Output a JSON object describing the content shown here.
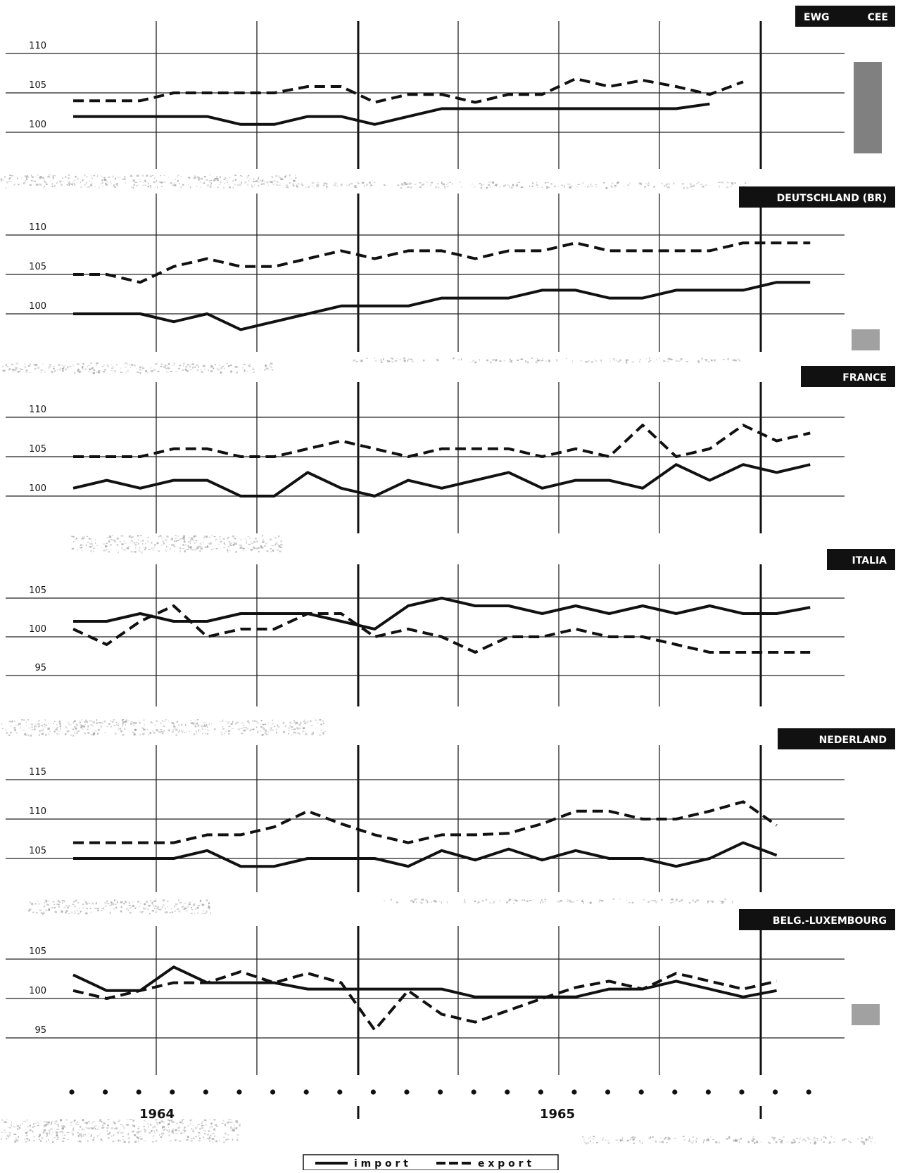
{
  "chart_data": [
    {
      "type": "line",
      "title": "EWG CEE",
      "title_parts": [
        "EWG",
        "CEE"
      ],
      "yticks": [
        100,
        105,
        110
      ],
      "ylim": [
        96.5,
        113
      ],
      "series": [
        {
          "name": "import",
          "values": [
            102,
            102,
            102,
            102,
            102,
            101,
            101,
            102,
            102,
            101,
            102,
            103,
            103,
            103,
            103,
            103,
            103,
            103,
            103,
            103.6
          ]
        },
        {
          "name": "export",
          "values": [
            104,
            104,
            104,
            105,
            105,
            105,
            105,
            105.8,
            105.8,
            103.8,
            104.8,
            104.8,
            103.8,
            104.8,
            104.8,
            106.8,
            105.8,
            106.6,
            105.8,
            104.8,
            106.4
          ]
        }
      ]
    },
    {
      "type": "line",
      "title": "DEUTSCHLAND (BR)",
      "yticks": [
        100,
        105,
        110
      ],
      "ylim": [
        95.5,
        113
      ],
      "series": [
        {
          "name": "import",
          "values": [
            100,
            100,
            100,
            99,
            100,
            98,
            99,
            100,
            101,
            101,
            101,
            102,
            102,
            102,
            103,
            103,
            102,
            102,
            103,
            103,
            103,
            104,
            104
          ]
        },
        {
          "name": "export",
          "values": [
            105,
            105,
            104,
            106,
            107,
            106,
            106,
            107,
            108,
            107,
            108,
            108,
            107,
            108,
            108,
            109,
            108,
            108,
            108,
            108,
            109,
            109,
            109
          ]
        }
      ]
    },
    {
      "type": "line",
      "title": "FRANCE",
      "yticks": [
        100,
        105,
        110
      ],
      "ylim": [
        95.5,
        114.5
      ],
      "series": [
        {
          "name": "import",
          "values": [
            101,
            102,
            101,
            102,
            102,
            100,
            100,
            103,
            101,
            100,
            102,
            101,
            102,
            103,
            101,
            102,
            102,
            101,
            104,
            102,
            104,
            103,
            104
          ]
        },
        {
          "name": "export",
          "values": [
            105,
            105,
            105,
            106,
            106,
            105,
            105,
            106,
            107,
            106,
            105,
            106,
            106,
            106,
            105,
            106,
            105,
            109,
            105,
            106,
            109,
            107,
            108
          ]
        }
      ]
    },
    {
      "type": "line",
      "title": "ITALIA",
      "yticks": [
        95,
        100,
        105
      ],
      "ylim": [
        90.5,
        109.5
      ],
      "series": [
        {
          "name": "import",
          "values": [
            102,
            102,
            103,
            102,
            102,
            103,
            103,
            103,
            102,
            101,
            104,
            105,
            104,
            104,
            103,
            104,
            103,
            104,
            103,
            104,
            103,
            103,
            103.8
          ]
        },
        {
          "name": "export",
          "values": [
            101,
            99,
            102,
            104,
            100,
            101,
            101,
            103,
            103,
            100,
            101,
            100,
            98,
            100,
            100,
            101,
            100,
            100,
            99,
            98,
            98,
            98,
            98
          ]
        }
      ]
    },
    {
      "type": "line",
      "title": "NEDERLAND",
      "yticks": [
        105,
        110,
        115
      ],
      "ylim": [
        100.5,
        119.5
      ],
      "series": [
        {
          "name": "import",
          "values": [
            105,
            105,
            105,
            105,
            106,
            104,
            104,
            105,
            105,
            105,
            104,
            106,
            104.8,
            106.2,
            104.8,
            106,
            105,
            105,
            104,
            105,
            107,
            105.4
          ]
        },
        {
          "name": "export",
          "values": [
            107,
            107,
            107,
            107,
            108,
            108,
            109,
            111,
            109.4,
            108,
            107,
            108,
            108,
            108.2,
            109.4,
            111,
            111,
            110,
            110,
            111,
            112.2,
            109.2
          ]
        }
      ]
    },
    {
      "type": "line",
      "title": "BELG.-LUXEMBOURG",
      "yticks": [
        95,
        100,
        105
      ],
      "ylim": [
        90.5,
        109.5
      ],
      "series": [
        {
          "name": "import",
          "values": [
            103,
            101,
            101,
            104,
            102,
            102,
            102,
            101.2,
            101.2,
            101.2,
            101.2,
            101.2,
            100.2,
            100.2,
            100.2,
            100.2,
            101.2,
            101.2,
            102.2,
            101.2,
            100.2,
            101
          ]
        },
        {
          "name": "export",
          "values": [
            101,
            100,
            101,
            102,
            102,
            103.4,
            102,
            103.2,
            102,
            96,
            101,
            98,
            97,
            98.5,
            100,
            101.4,
            102.2,
            101.2,
            103.2,
            102.2,
            101.2,
            102.2
          ]
        }
      ]
    }
  ],
  "x_axis": {
    "periods": 23,
    "year_labels": [
      "1964",
      "1965"
    ]
  },
  "legend": {
    "import_label": "i m p o r t",
    "export_label": "e x p o r t"
  },
  "colors": {
    "ink": "#111111",
    "grid": "#222222",
    "label_box": "#111111",
    "label_text": "#ffffff",
    "noise": "#9a9a9a"
  }
}
